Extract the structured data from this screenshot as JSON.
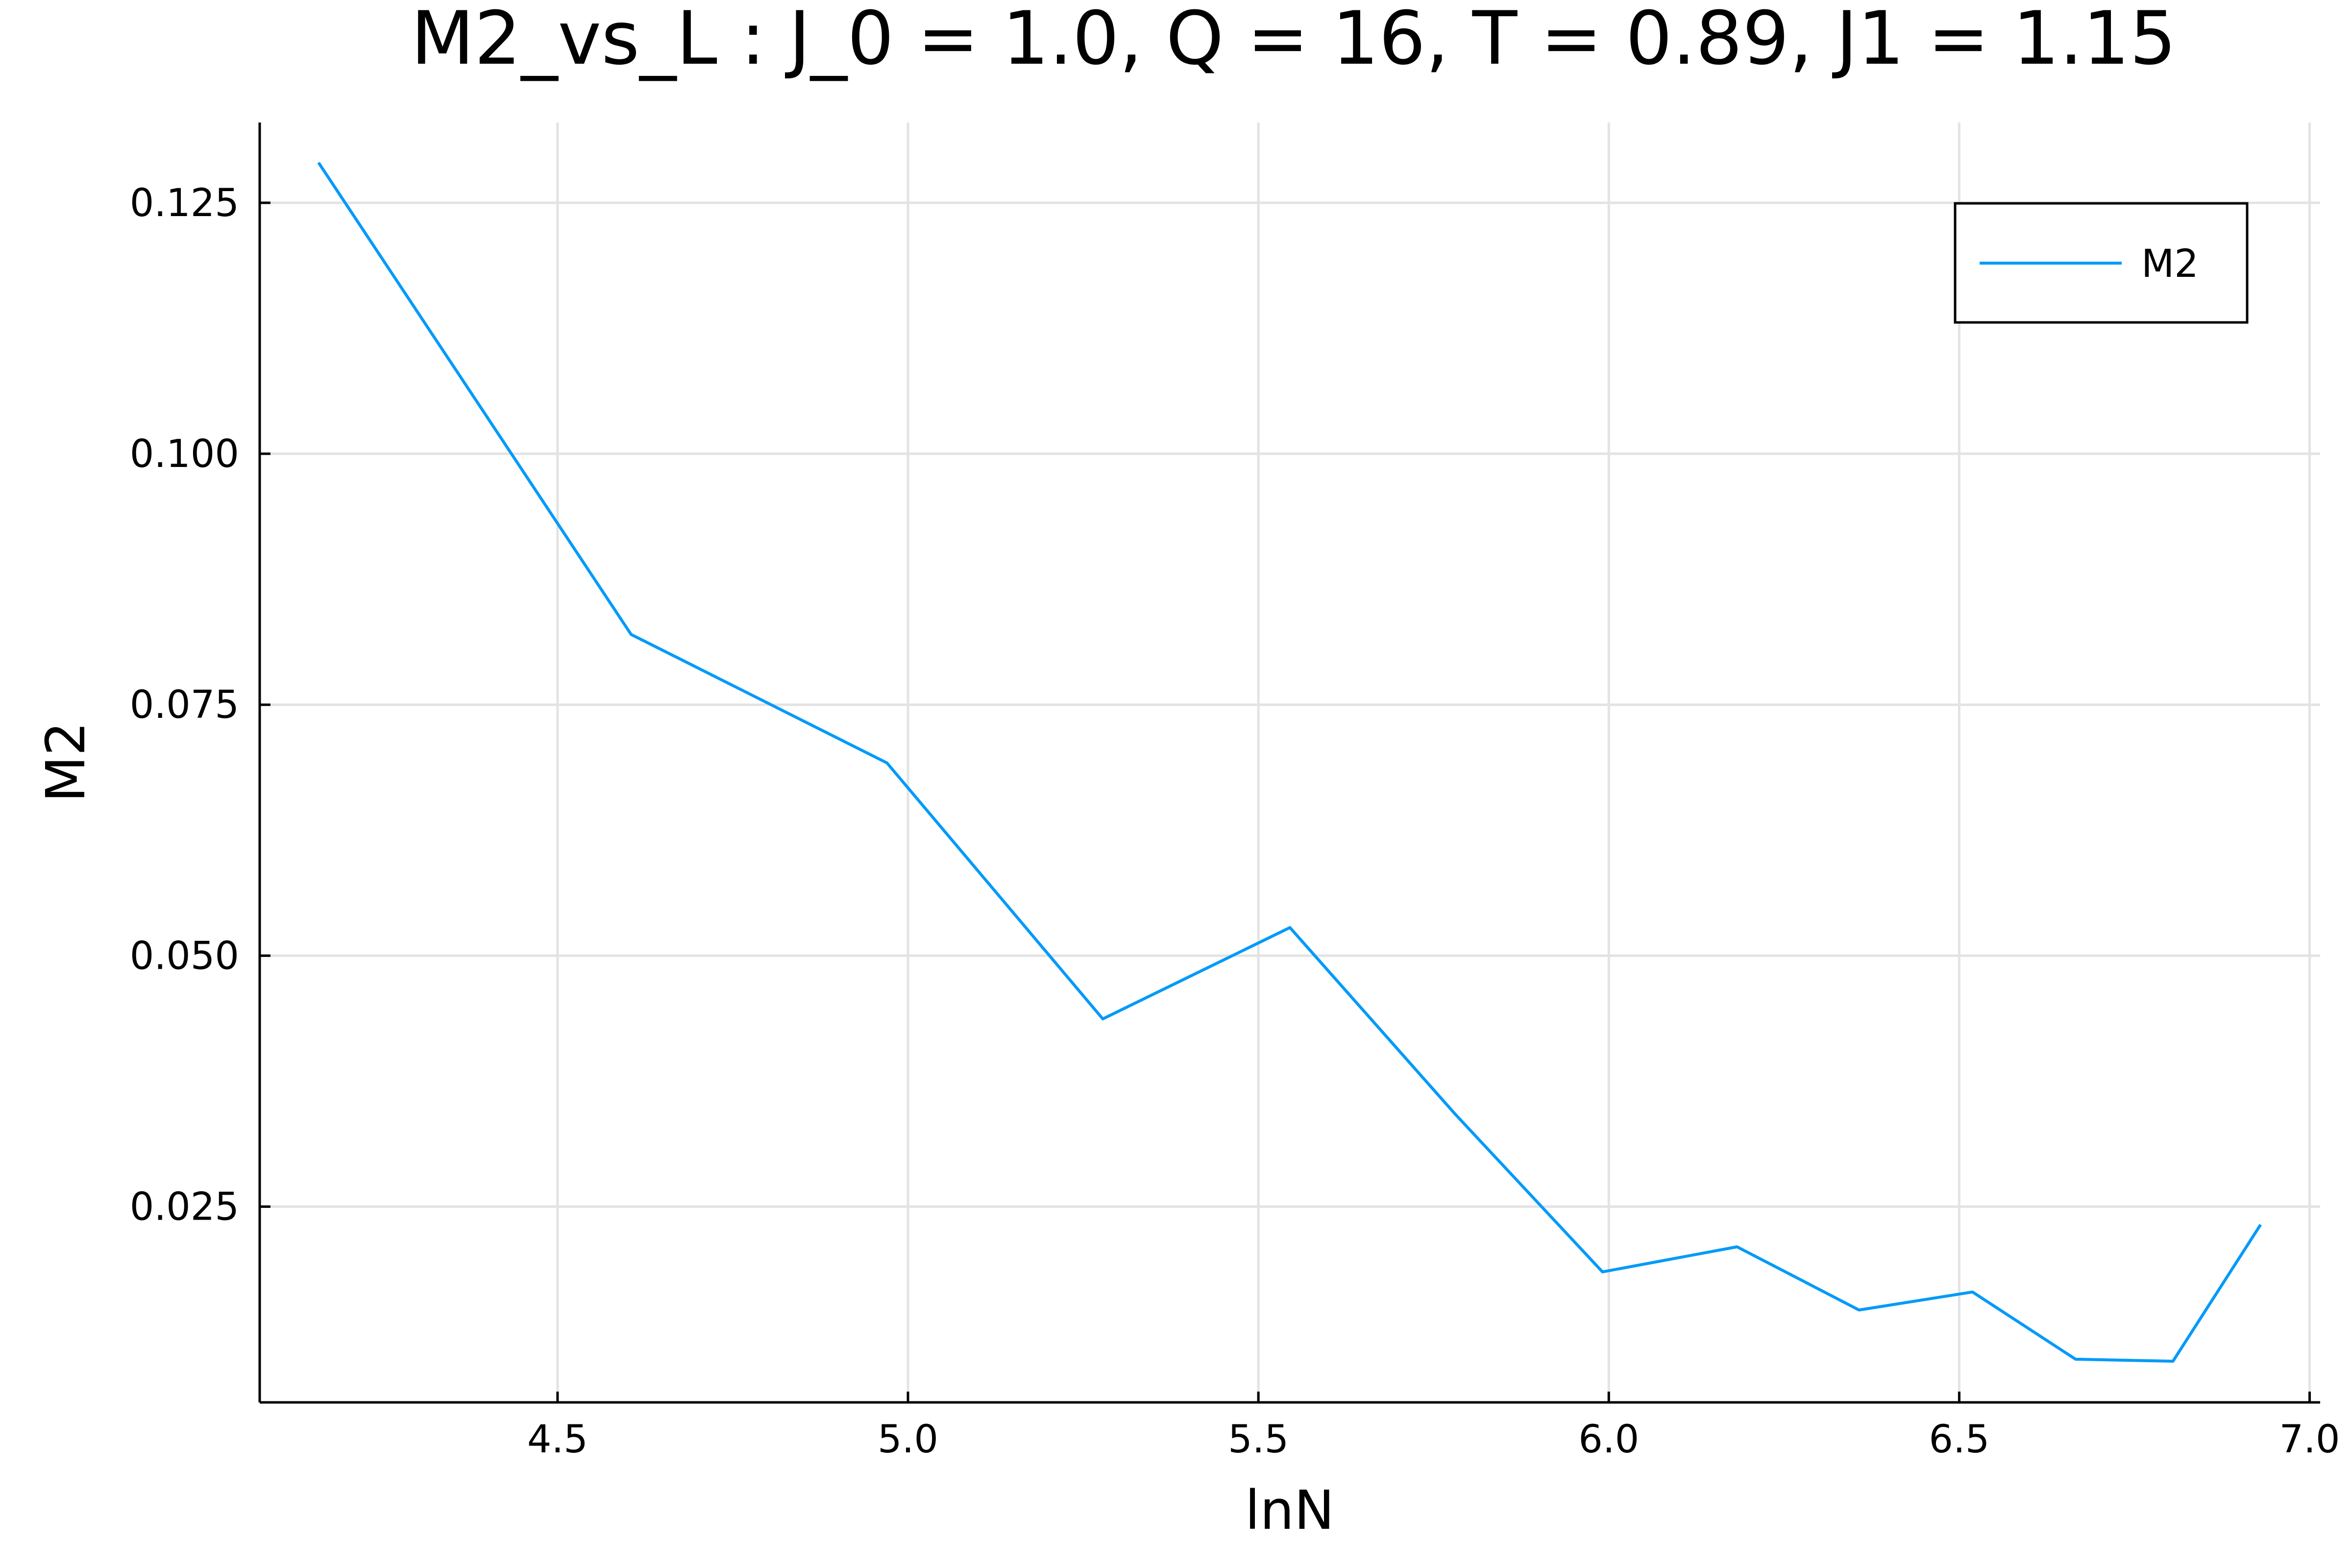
{
  "chart_data": {
    "type": "line",
    "title": "M2_vs_L : J_0 = 1.0, Q = 16, T = 0.89, J1 = 1.15",
    "xlabel": "lnN",
    "ylabel": "M2",
    "xlim": [
      4.075,
      7.015
    ],
    "ylim": [
      0.0055,
      0.133
    ],
    "x_ticks": [
      4.5,
      5.0,
      5.5,
      6.0,
      6.5,
      7.0
    ],
    "x_tick_labels": [
      "4.5",
      "5.0",
      "5.5",
      "6.0",
      "6.5",
      "7.0"
    ],
    "y_ticks": [
      0.025,
      0.05,
      0.075,
      0.1,
      0.125
    ],
    "y_tick_labels": [
      "0.025",
      "0.050",
      "0.075",
      "0.100",
      "0.125"
    ],
    "grid": true,
    "legend": "top-right",
    "series": [
      {
        "name": "M2",
        "color": "#009af9",
        "x": [
          4.159,
          4.605,
          4.97,
          5.278,
          5.545,
          5.781,
          5.991,
          6.183,
          6.357,
          6.519,
          6.666,
          6.805,
          6.93
        ],
        "y": [
          0.129,
          0.082,
          0.0692,
          0.0437,
          0.0528,
          0.0342,
          0.0185,
          0.021,
          0.0147,
          0.0165,
          0.0098,
          0.0096,
          0.0232
        ]
      }
    ]
  }
}
